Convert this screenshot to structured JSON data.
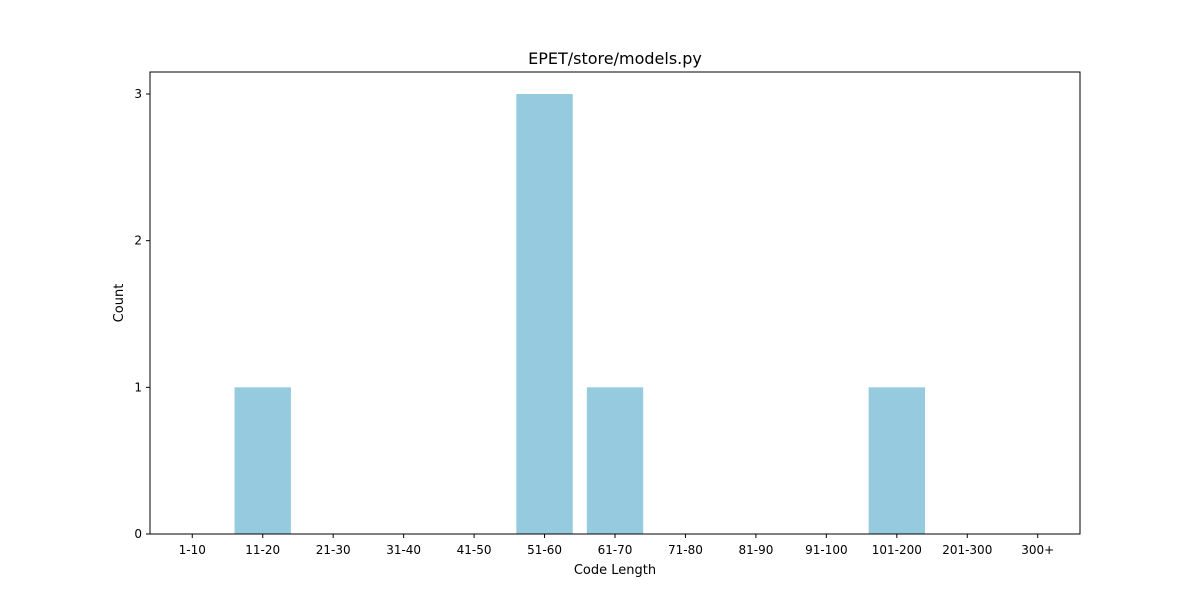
{
  "chart_data": {
    "type": "bar",
    "title": "EPET/store/models.py",
    "xlabel": "Code Length",
    "ylabel": "Count",
    "categories": [
      "1-10",
      "11-20",
      "21-30",
      "31-40",
      "41-50",
      "51-60",
      "61-70",
      "71-80",
      "81-90",
      "91-100",
      "101-200",
      "201-300",
      "300+"
    ],
    "values": [
      0,
      1,
      0,
      0,
      0,
      3,
      1,
      0,
      0,
      0,
      1,
      0,
      0
    ],
    "ylim": [
      0,
      3.15
    ],
    "yticks": [
      0,
      1,
      2,
      3
    ],
    "bar_color": "#96cade",
    "grid": false,
    "legend": "none"
  }
}
